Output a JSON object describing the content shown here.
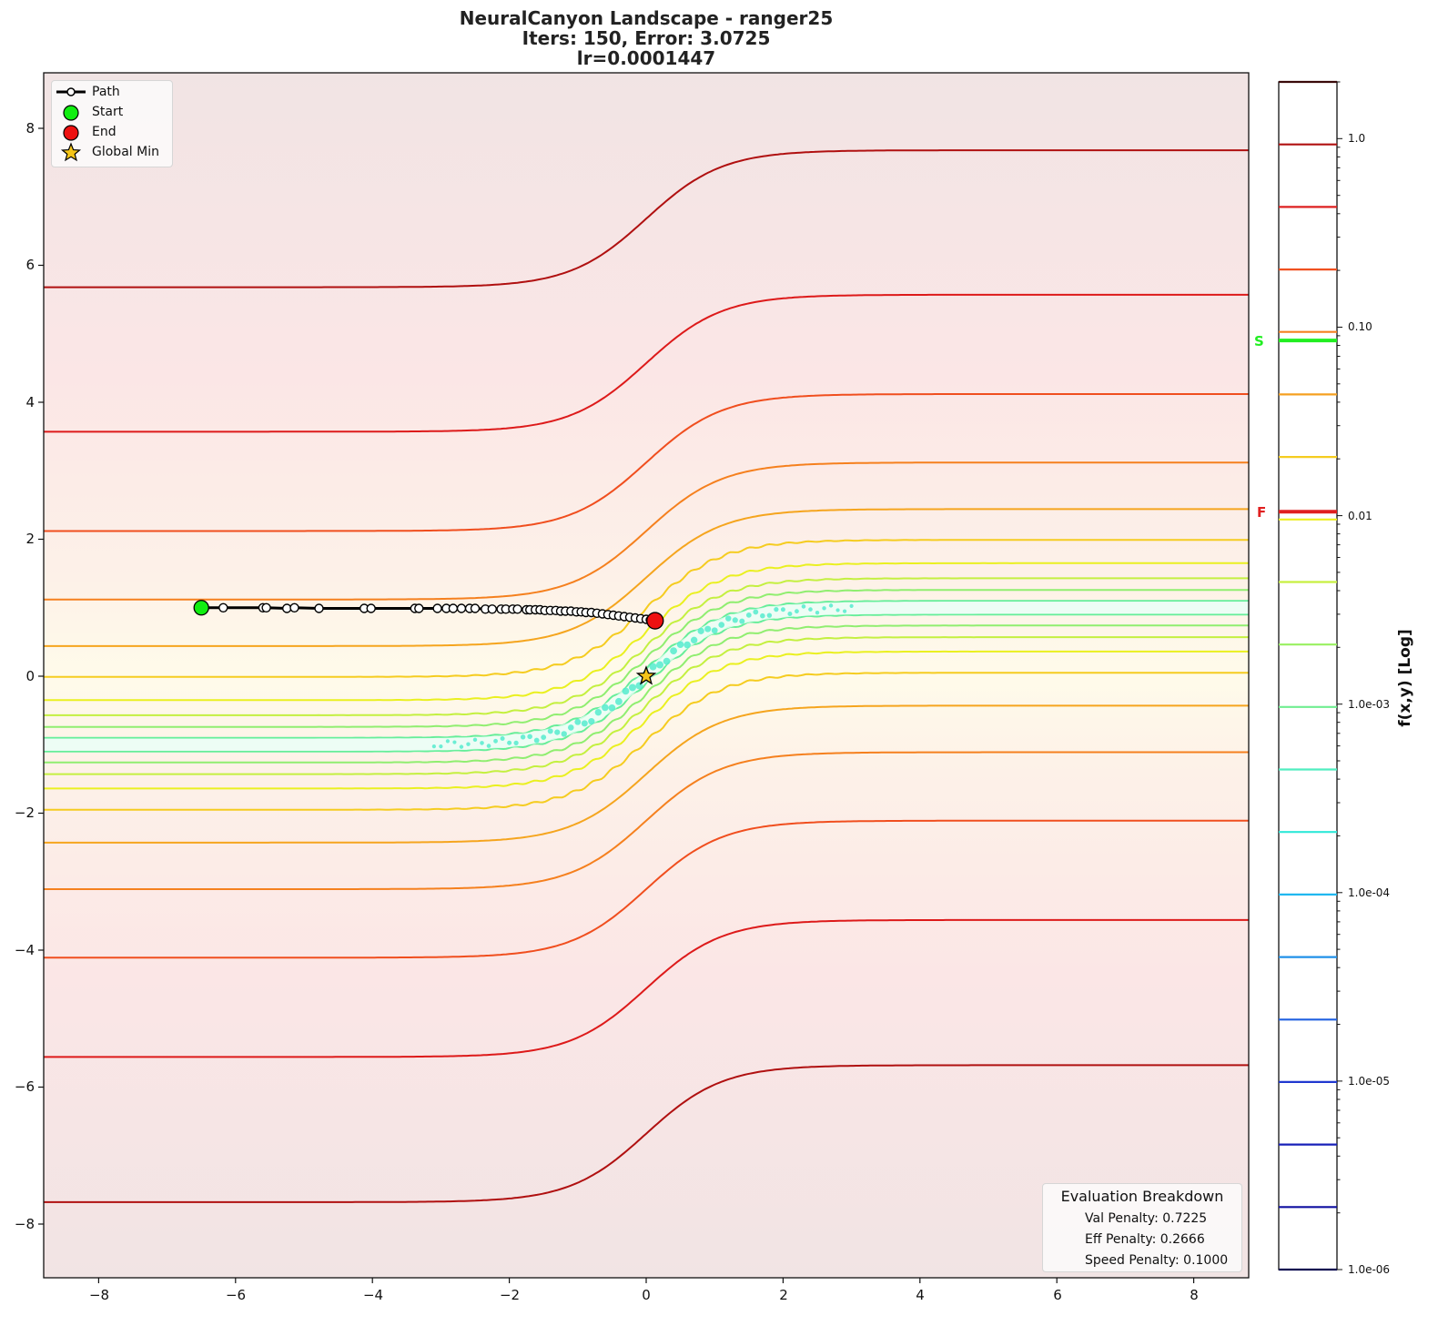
{
  "chart_data": {
    "type": "contour",
    "title": "NeuralCanyon Landscape - ranger25",
    "subtitle_lines": [
      "Iters: 150, Error: 3.0725",
      "lr=0.0001447"
    ],
    "xlabel": "",
    "ylabel": "",
    "xlim": [
      -8.8,
      8.8
    ],
    "ylim": [
      -8.8,
      8.8
    ],
    "x_ticks": [
      -8,
      -6,
      -4,
      -2,
      0,
      2,
      4,
      6,
      8
    ],
    "y_ticks": [
      8,
      6,
      4,
      2,
      0,
      -2,
      -4,
      -6,
      -8
    ],
    "grid": false,
    "canyon_center": "y = tanh(x) (approx., from -1 at left to +1 at right)",
    "contour_offsets_from_center": [
      6.68,
      4.57,
      3.12,
      2.12,
      1.44,
      0.99,
      0.65,
      0.43,
      0.26,
      0.1,
      -0.1,
      -0.26,
      -0.43,
      -0.64,
      -0.95,
      -1.43,
      -2.11,
      -3.11,
      -4.56,
      -6.68
    ],
    "path": {
      "start": [
        -6.5,
        1.0
      ],
      "end": [
        0.13,
        0.81
      ],
      "points_x": [
        -6.5,
        -6.18,
        -5.6,
        -5.55,
        -5.25,
        -5.14,
        -4.78,
        -4.12,
        -4.02,
        -3.38,
        -3.32,
        -3.05,
        -2.92,
        -2.82,
        -2.7,
        -2.58,
        -2.5,
        -2.35,
        -2.25,
        -2.12,
        -2.05,
        -1.95,
        -1.88,
        -1.75,
        -1.7,
        -1.62,
        -1.55,
        -1.48,
        -1.4,
        -1.32,
        -1.25,
        -1.18,
        -1.1,
        -1.02,
        -0.95,
        -0.88,
        -0.8,
        -0.72,
        -0.64,
        -0.56,
        -0.48,
        -0.4,
        -0.32,
        -0.24,
        -0.16,
        -0.08,
        0.0,
        0.06,
        0.13
      ],
      "points_y": [
        1.0,
        1.0,
        1.0,
        1.0,
        0.99,
        1.0,
        0.99,
        0.99,
        0.99,
        0.99,
        0.99,
        0.99,
        0.99,
        0.99,
        0.99,
        0.99,
        0.99,
        0.98,
        0.98,
        0.98,
        0.98,
        0.98,
        0.98,
        0.97,
        0.97,
        0.97,
        0.97,
        0.96,
        0.96,
        0.96,
        0.95,
        0.95,
        0.95,
        0.94,
        0.94,
        0.93,
        0.93,
        0.92,
        0.91,
        0.9,
        0.89,
        0.88,
        0.87,
        0.86,
        0.85,
        0.84,
        0.83,
        0.82,
        0.81
      ]
    },
    "global_min": [
      0.0,
      0.0
    ],
    "legend": [
      "Path",
      "Start",
      "End",
      "Global Min"
    ],
    "legend_position": "upper left",
    "colorbar": {
      "label": "f(x,y) [Log]",
      "scale": "log",
      "range": [
        1e-06,
        2.0
      ],
      "tick_labels": [
        "1.0",
        "0.10",
        "0.01",
        "1.0e-03",
        "1.0e-04",
        "1.0e-05",
        "1.0e-06"
      ],
      "tick_values": [
        1.0,
        0.1,
        0.01,
        0.001,
        0.0001,
        1e-05,
        1e-06
      ],
      "markers": [
        {
          "label": "S",
          "value": 0.085,
          "color": "#22ee22"
        },
        {
          "label": "F",
          "value": 0.0105,
          "color": "#e02020"
        }
      ]
    },
    "annotation_box": {
      "title": "Evaluation Breakdown",
      "lines": [
        "Val Penalty: 0.7225",
        "Eff Penalty: 0.2666",
        "Speed Penalty: 0.1000"
      ]
    }
  },
  "title": {
    "line1": "NeuralCanyon Landscape - ranger25",
    "line2": "Iters: 150, Error: 3.0725",
    "line3": "lr=0.0001447"
  },
  "legend": {
    "path": "Path",
    "start": "Start",
    "end": "End",
    "global_min": "Global Min"
  },
  "evaluation": {
    "title": "Evaluation Breakdown",
    "val": "Val Penalty: 0.7225",
    "eff": "Eff Penalty: 0.2666",
    "speed": "Speed Penalty: 0.1000"
  },
  "x_ticks": [
    "−8",
    "−6",
    "−4",
    "−2",
    "0",
    "2",
    "4",
    "6",
    "8"
  ],
  "y_ticks": [
    "8",
    "6",
    "4",
    "2",
    "0",
    "−2",
    "−4",
    "−6",
    "−8"
  ],
  "colorbar": {
    "label": "f(x,y) [Log]",
    "ticks": [
      "1.0",
      "0.10",
      "0.01",
      "1.0e-03",
      "1.0e-04",
      "1.0e-05",
      "1.0e-06"
    ],
    "marker_s": "S",
    "marker_f": "F",
    "level_colors": [
      "#3a0a0a",
      "#b01010",
      "#dd2020",
      "#f05020",
      "#f58020",
      "#f5a020",
      "#f5cc20",
      "#eeee20",
      "#c8f040",
      "#98f060",
      "#70ee90",
      "#50eec0",
      "#30e8d8",
      "#20b8f0",
      "#2090e8",
      "#2060e0",
      "#2038d0",
      "#1820b8",
      "#1010a0",
      "#0a0a50"
    ]
  },
  "colors": {
    "start": "#11ee11",
    "end": "#ee1111",
    "star": "#f5c518",
    "path": "#000000"
  }
}
